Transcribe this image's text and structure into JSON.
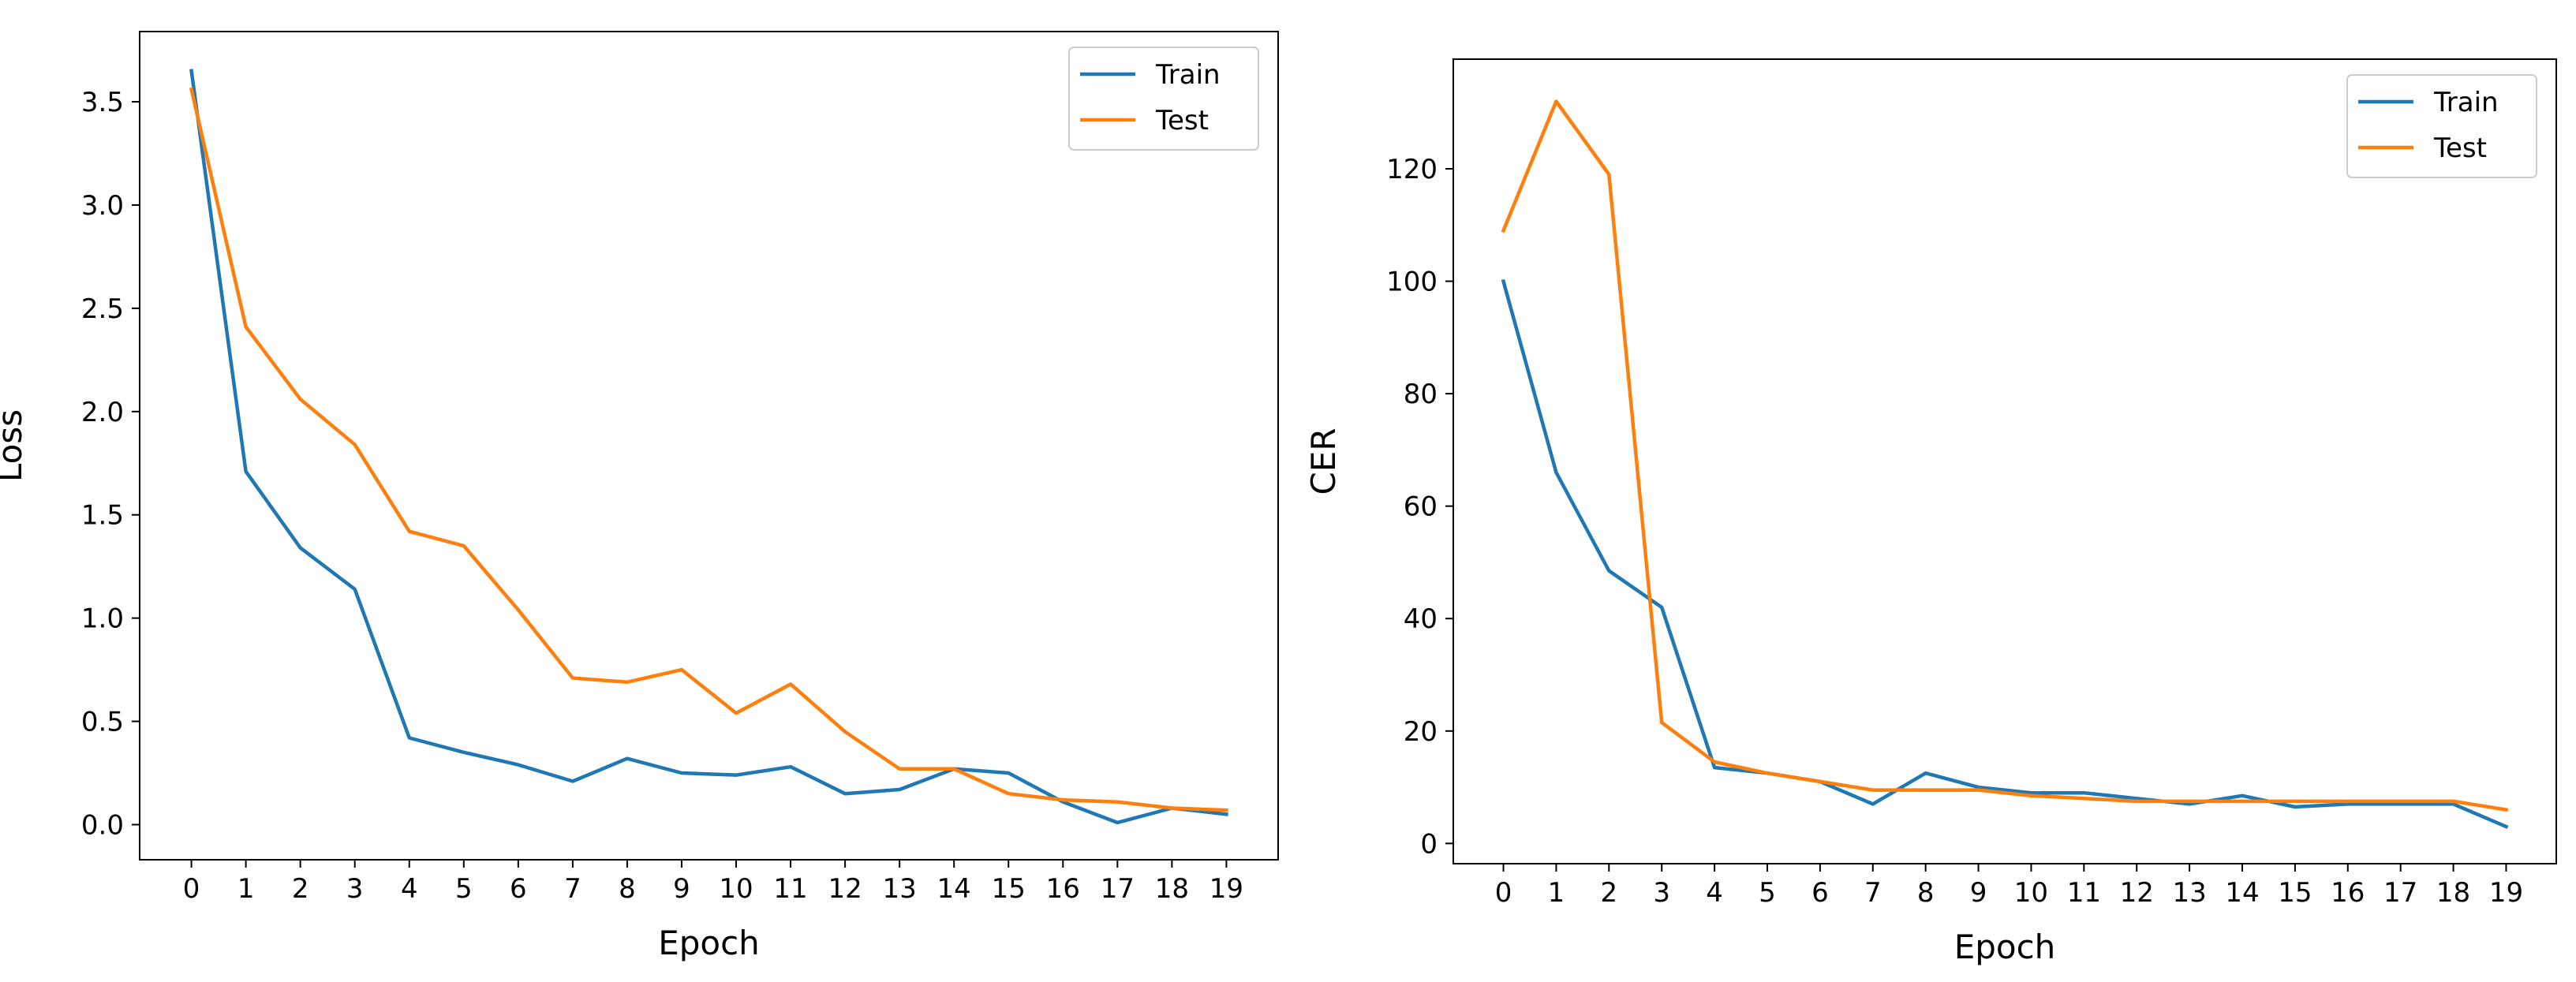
{
  "chart_data": [
    {
      "type": "line",
      "title": "",
      "xlabel": "Epoch",
      "ylabel": "Loss",
      "x": [
        0,
        1,
        2,
        3,
        4,
        5,
        6,
        7,
        8,
        9,
        10,
        11,
        12,
        13,
        14,
        15,
        16,
        17,
        18,
        19
      ],
      "xticks": [
        "0",
        "1",
        "2",
        "3",
        "4",
        "5",
        "6",
        "7",
        "8",
        "9",
        "10",
        "11",
        "12",
        "13",
        "14",
        "15",
        "16",
        "17",
        "18",
        "19"
      ],
      "yticks": [
        0.0,
        0.5,
        1.0,
        1.5,
        2.0,
        2.5,
        3.0,
        3.5
      ],
      "ytick_labels": [
        "0.0",
        "0.5",
        "1.0",
        "1.5",
        "2.0",
        "2.5",
        "3.0",
        "3.5"
      ],
      "xlim": [
        -0.95,
        19.95
      ],
      "ylim": [
        -0.17,
        3.84
      ],
      "legend_position": "top-right",
      "series": [
        {
          "name": "Train",
          "color": "#1f77b4",
          "values": [
            3.65,
            1.71,
            1.34,
            1.14,
            0.42,
            0.35,
            0.29,
            0.21,
            0.32,
            0.25,
            0.24,
            0.28,
            0.15,
            0.17,
            0.27,
            0.25,
            0.11,
            0.01,
            0.08,
            0.05
          ]
        },
        {
          "name": "Test",
          "color": "#ff7f0e",
          "values": [
            3.56,
            2.41,
            2.06,
            1.84,
            1.42,
            1.35,
            1.04,
            0.71,
            0.69,
            0.75,
            0.54,
            0.68,
            0.45,
            0.27,
            0.27,
            0.15,
            0.12,
            0.11,
            0.08,
            0.07
          ]
        }
      ]
    },
    {
      "type": "line",
      "title": "",
      "xlabel": "Epoch",
      "ylabel": "CER",
      "x": [
        0,
        1,
        2,
        3,
        4,
        5,
        6,
        7,
        8,
        9,
        10,
        11,
        12,
        13,
        14,
        15,
        16,
        17,
        18,
        19
      ],
      "xticks": [
        "0",
        "1",
        "2",
        "3",
        "4",
        "5",
        "6",
        "7",
        "8",
        "9",
        "10",
        "11",
        "12",
        "13",
        "14",
        "15",
        "16",
        "17",
        "18",
        "19"
      ],
      "yticks": [
        0,
        20,
        40,
        60,
        80,
        100,
        120
      ],
      "ytick_labels": [
        "0",
        "20",
        "40",
        "60",
        "80",
        "100",
        "120"
      ],
      "xlim": [
        -0.95,
        19.95
      ],
      "ylim": [
        -3.6,
        139.5
      ],
      "legend_position": "top-right",
      "series": [
        {
          "name": "Train",
          "color": "#1f77b4",
          "values": [
            100,
            66,
            48.5,
            42,
            13.5,
            12.5,
            11,
            7,
            12.5,
            10,
            9,
            9,
            8,
            7,
            8.5,
            6.5,
            7,
            7,
            7,
            3
          ]
        },
        {
          "name": "Test",
          "color": "#ff7f0e",
          "values": [
            109,
            132,
            119,
            21.5,
            14.5,
            12.5,
            11,
            9.5,
            9.5,
            9.5,
            8.5,
            8,
            7.5,
            7.5,
            7.5,
            7.5,
            7.5,
            7.5,
            7.5,
            6
          ]
        }
      ]
    }
  ]
}
